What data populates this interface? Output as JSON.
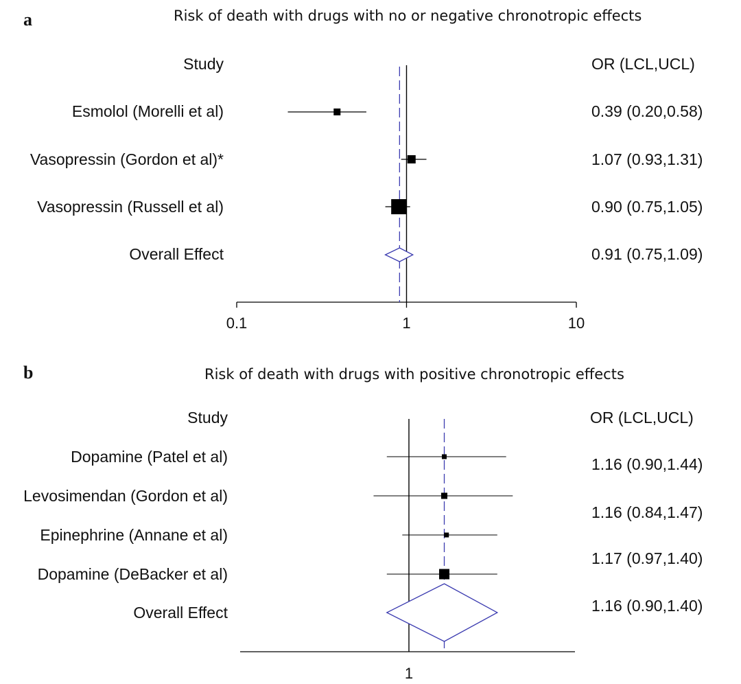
{
  "colors": {
    "ink": "#000000",
    "pooled": "#3b3bb0",
    "background": "#ffffff"
  },
  "chart_data": [
    {
      "type": "forest",
      "panel": "a",
      "title": "Risk of death with drugs with no or negative chronotropic effects",
      "study_header": "Study",
      "or_header": "OR (LCL,UCL)",
      "x_scale": "log",
      "xlim": [
        0.1,
        10
      ],
      "x_ticks": [
        "0.1",
        "1",
        "10"
      ],
      "null_line": 1,
      "studies": [
        {
          "label": "Esmolol (Morelli et al)",
          "or": 0.39,
          "lcl": 0.2,
          "ucl": 0.58,
          "text": "0.39 (0.20,0.58)"
        },
        {
          "label": "Vasopressin (Gordon et al)*",
          "or": 1.07,
          "lcl": 0.93,
          "ucl": 1.31,
          "text": "1.07 (0.93,1.31)"
        },
        {
          "label": "Vasopressin (Russell et al)",
          "or": 0.9,
          "lcl": 0.75,
          "ucl": 1.05,
          "text": "0.90 (0.75,1.05)"
        }
      ],
      "overall": {
        "label": "Overall Effect",
        "or": 0.91,
        "lcl": 0.75,
        "ucl": 1.09,
        "text": "0.91 (0.75,1.09)"
      }
    },
    {
      "type": "forest",
      "panel": "b",
      "title": "Risk of death with drugs with positive chronotropic effects",
      "study_header": "Study",
      "or_header": "OR (LCL,UCL)",
      "x_scale": "linear",
      "x_ticks": [
        "1"
      ],
      "null_line": 1,
      "studies": [
        {
          "label": "Dopamine (Patel et al)",
          "or": 1.16,
          "lcl": 0.9,
          "ucl": 1.44,
          "text": "1.16 (0.90,1.44)"
        },
        {
          "label": "Levosimendan (Gordon et al)",
          "or": 1.16,
          "lcl": 0.84,
          "ucl": 1.47,
          "text": "1.16 (0.84,1.47)"
        },
        {
          "label": "Epinephrine (Annane et al)",
          "or": 1.17,
          "lcl": 0.97,
          "ucl": 1.4,
          "text": "1.17 (0.97,1.40)"
        },
        {
          "label": "Dopamine (DeBacker et al)",
          "or": 1.16,
          "lcl": 0.9,
          "ucl": 1.4,
          "text": ""
        }
      ],
      "overall": {
        "label": "Overall Effect",
        "or": 1.16,
        "lcl": 0.9,
        "ucl": 1.4,
        "text": "1.16 (0.90,1.40)"
      }
    }
  ]
}
